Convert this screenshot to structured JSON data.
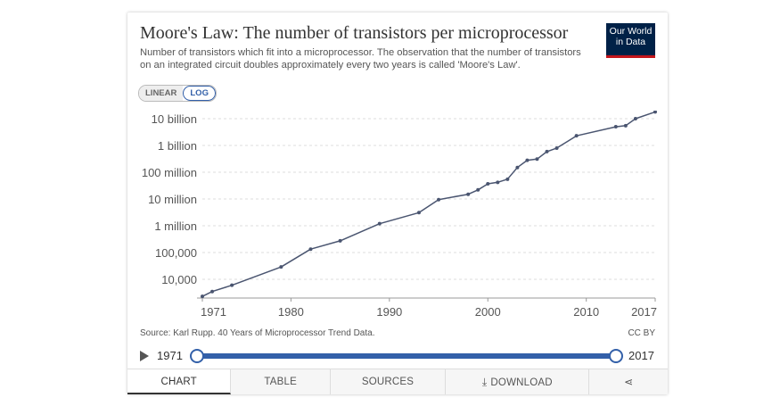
{
  "header": {
    "title": "Moore's Law: The number of transistors per microprocessor",
    "subtitle": "Number of transistors which fit into a microprocessor. The observation that the number of transistors on an integrated circuit doubles approximately every two years is called 'Moore's Law'.",
    "logo_line1": "Our World",
    "logo_line2": "in Data"
  },
  "scale_toggle": {
    "linear_label": "LINEAR",
    "log_label": "LOG",
    "selected": "LOG"
  },
  "footer": {
    "source": "Source: Karl Rupp. 40 Years of Microprocessor Trend Data.",
    "license": "CC BY"
  },
  "timeline": {
    "start_label": "1971",
    "end_label": "2017",
    "start_position": 0,
    "end_position": 1
  },
  "tabs": [
    {
      "label": "CHART",
      "active": true
    },
    {
      "label": "TABLE",
      "active": false
    },
    {
      "label": "SOURCES",
      "active": false
    },
    {
      "label": "DOWNLOAD",
      "active": false
    },
    {
      "label": "",
      "active": false
    }
  ],
  "colors": {
    "line": "#4a5570",
    "grid": "#dddddd",
    "accent": "#3360a9",
    "logo_bg": "#002147",
    "logo_bar": "#c4161c"
  },
  "chart_data": {
    "type": "line",
    "title": "Moore's Law: The number of transistors per microprocessor",
    "xlabel": "",
    "ylabel": "",
    "yscale": "log",
    "xlim": [
      1971,
      2017
    ],
    "ylim": [
      2000,
      20000000000
    ],
    "x_ticks": [
      1971,
      1980,
      1990,
      2000,
      2010,
      2017
    ],
    "y_ticks": [
      10000,
      100000,
      1000000,
      10000000,
      100000000,
      1000000000,
      10000000000
    ],
    "y_tick_labels": [
      "10,000",
      "100,000",
      "1 million",
      "10 million",
      "100 million",
      "1 billion",
      "10 billion"
    ],
    "grid": true,
    "series": [
      {
        "name": "Transistors per microprocessor",
        "x": [
          1971,
          1972,
          1974,
          1979,
          1982,
          1985,
          1989,
          1993,
          1995,
          1998,
          1999,
          2000,
          2001,
          2002,
          2003,
          2004,
          2005,
          2006,
          2007,
          2009,
          2013,
          2014,
          2015,
          2017
        ],
        "values": [
          2300,
          3500,
          6000,
          29000,
          134000,
          275000,
          1200000,
          3100000,
          9500000,
          15000000,
          22000000,
          37000000,
          42000000,
          55000000,
          150000000,
          280000000,
          310000000,
          590000000,
          800000000,
          2300000000,
          5000000000,
          5500000000,
          10000000000,
          18000000000
        ]
      }
    ]
  }
}
